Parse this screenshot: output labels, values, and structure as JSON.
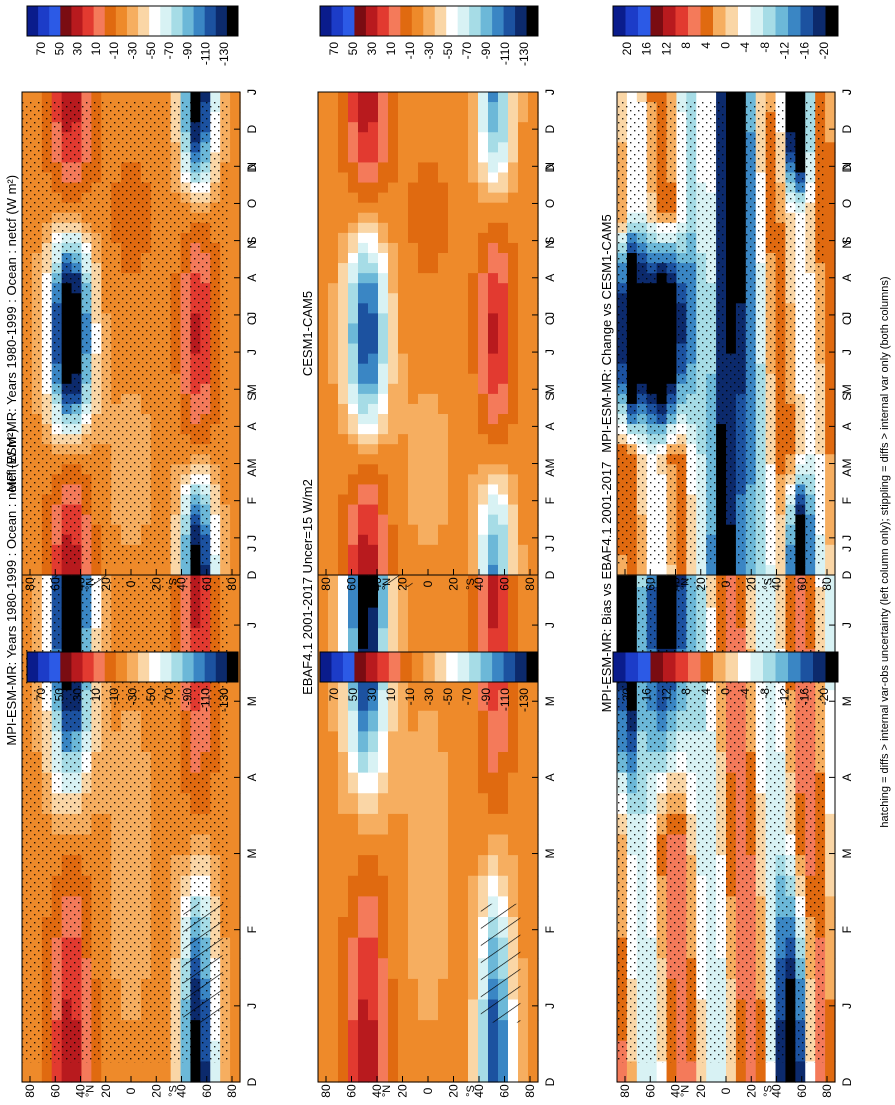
{
  "figure": {
    "footnote": "hatching = diffs > internal var-obs uncertainty (left column only); stippling = diffs > internal var only (both columns)",
    "orientation": "rotated 90° clockwise",
    "colors": {
      "abs_scale": [
        "#0a1c8c",
        "#1c3cc8",
        "#2c5ae6",
        "#7a0c12",
        "#b81a1e",
        "#e23a30",
        "#f47a5a",
        "#e06a10",
        "#ee8a2a",
        "#f6ae60",
        "#fad6a6",
        "#ffffff",
        "#d8f2f4",
        "#a6dce6",
        "#6cb8d8",
        "#3a86c4",
        "#1c52a0",
        "#0c2a6c",
        "#000000"
      ],
      "diff_scale": [
        "#0a1c8c",
        "#1c3cc8",
        "#2c5ae6",
        "#7a0c12",
        "#b81a1e",
        "#e23a30",
        "#f47a5a",
        "#e06a10",
        "#f6ae60",
        "#fad6a6",
        "#ffffff",
        "#d8f2f4",
        "#a6dce6",
        "#6cb8d8",
        "#3a86c4",
        "#1c52a0",
        "#0c2a6c",
        "#000000"
      ]
    }
  },
  "chart_data": [
    {
      "type": "heatmap",
      "title": "MPI-ESM-MR: Years 1980-1999 : Ocean : netcf (W m²)",
      "months": [
        "D",
        "J",
        "F",
        "M",
        "A",
        "M",
        "J",
        "J",
        "A",
        "S",
        "O",
        "N",
        "D",
        "J"
      ],
      "lat_ticks": [
        "80",
        "60",
        "40",
        "20",
        "0",
        "20",
        "40",
        "60",
        "80"
      ],
      "lat_hemi": [
        "N",
        "S"
      ],
      "colorbar_ticks": [
        "70",
        "50",
        "30",
        "10",
        "-10",
        "-30",
        "-50",
        "-70",
        "-90",
        "-110",
        "-130"
      ],
      "range": [
        -130,
        70
      ],
      "overlay": [
        "stippling",
        "hatching"
      ],
      "features": {
        "nh_summer_min": -130,
        "sh_summer_min": -110,
        "winter_max": 50
      }
    },
    {
      "type": "heatmap",
      "title": "MPI-ESM-MR: Years 1980-1999 : Ocean : netcf (W m²)",
      "months": [
        "D",
        "J",
        "F",
        "M",
        "A",
        "M",
        "J",
        "J",
        "A",
        "S",
        "O",
        "N",
        "D",
        "J"
      ],
      "lat_ticks": [
        "80",
        "60",
        "40",
        "20",
        "0",
        "20",
        "40",
        "60",
        "80"
      ],
      "lat_hemi": [
        "N",
        "S"
      ],
      "colorbar_ticks": [
        "70",
        "50",
        "30",
        "10",
        "-10",
        "-30",
        "-50",
        "-70",
        "-90",
        "-110",
        "-130"
      ],
      "range": [
        -130,
        70
      ],
      "overlay": [
        "stippling"
      ],
      "features": {
        "nh_summer_min": -130,
        "sh_summer_min": -110,
        "winter_max": 50
      }
    },
    {
      "type": "heatmap",
      "title": "EBAF4.1 2001-2017 Uncer=15 W/m2",
      "months": [
        "D",
        "J",
        "F",
        "M",
        "A",
        "M",
        "J",
        "J",
        "A",
        "S",
        "O",
        "N",
        "D",
        "J"
      ],
      "lat_ticks": [
        "80",
        "60",
        "40",
        "20",
        "0",
        "20",
        "40",
        "60",
        "80"
      ],
      "lat_hemi": [
        "N",
        "S"
      ],
      "colorbar_ticks": [
        "70",
        "50",
        "30",
        "10",
        "-10",
        "-30",
        "-50",
        "-70",
        "-90",
        "-110",
        "-130"
      ],
      "range": [
        -130,
        70
      ],
      "overlay": [
        "hatching"
      ],
      "features": {
        "nh_summer_min": -110,
        "sh_summer_min": -90,
        "winter_max": 50
      }
    },
    {
      "type": "heatmap",
      "title": "CESM1-CAM5",
      "months": [
        "D",
        "J",
        "F",
        "M",
        "A",
        "M",
        "J",
        "J",
        "A",
        "S",
        "O",
        "N",
        "D",
        "J"
      ],
      "lat_ticks": [
        "80",
        "60",
        "40",
        "20",
        "0",
        "20",
        "40",
        "60",
        "80"
      ],
      "lat_hemi": [
        "N",
        "S"
      ],
      "colorbar_ticks": [
        "70",
        "50",
        "30",
        "10",
        "-10",
        "-30",
        "-50",
        "-70",
        "-90",
        "-110",
        "-130"
      ],
      "range": [
        -130,
        70
      ],
      "overlay": [],
      "features": {
        "nh_summer_min": -90,
        "sh_summer_min": -70,
        "winter_max": 50
      }
    },
    {
      "type": "heatmap",
      "title": "MPI-ESM-MR: Bias vs EBAF4.1 2001-2017",
      "months": [
        "D",
        "J",
        "F",
        "M",
        "A",
        "M",
        "J",
        "J",
        "A",
        "S",
        "O",
        "N",
        "D",
        "J"
      ],
      "lat_ticks": [
        "80",
        "60",
        "40",
        "20",
        "0",
        "20",
        "40",
        "60",
        "80"
      ],
      "lat_hemi": [
        "N",
        "S"
      ],
      "colorbar_ticks": [
        "20",
        "16",
        "12",
        "8",
        "4",
        "0",
        "-4",
        "-8",
        "-12",
        "-16",
        "-20"
      ],
      "range": [
        -20,
        20
      ],
      "overlay": [
        "stippling"
      ],
      "features": {
        "nh_summer_min": -20,
        "sh_summer_min": -20,
        "winter_max": 20
      }
    },
    {
      "type": "heatmap",
      "title": "MPI-ESM-MR: Change vs CESM1-CAM5",
      "months": [
        "D",
        "J",
        "F",
        "M",
        "A",
        "M",
        "J",
        "J",
        "A",
        "S",
        "O",
        "N",
        "D",
        "J"
      ],
      "lat_ticks": [
        "80",
        "60",
        "40",
        "20",
        "0",
        "20",
        "40",
        "60",
        "80"
      ],
      "lat_hemi": [
        "N",
        "S"
      ],
      "colorbar_ticks": [
        "20",
        "16",
        "12",
        "8",
        "4",
        "0",
        "-4",
        "-8",
        "-12",
        "-16",
        "-20"
      ],
      "range": [
        -20,
        20
      ],
      "overlay": [
        "stippling"
      ],
      "features": {
        "nh_summer_min": -20,
        "sh_summer_min": -20,
        "winter_max": 20
      }
    }
  ]
}
